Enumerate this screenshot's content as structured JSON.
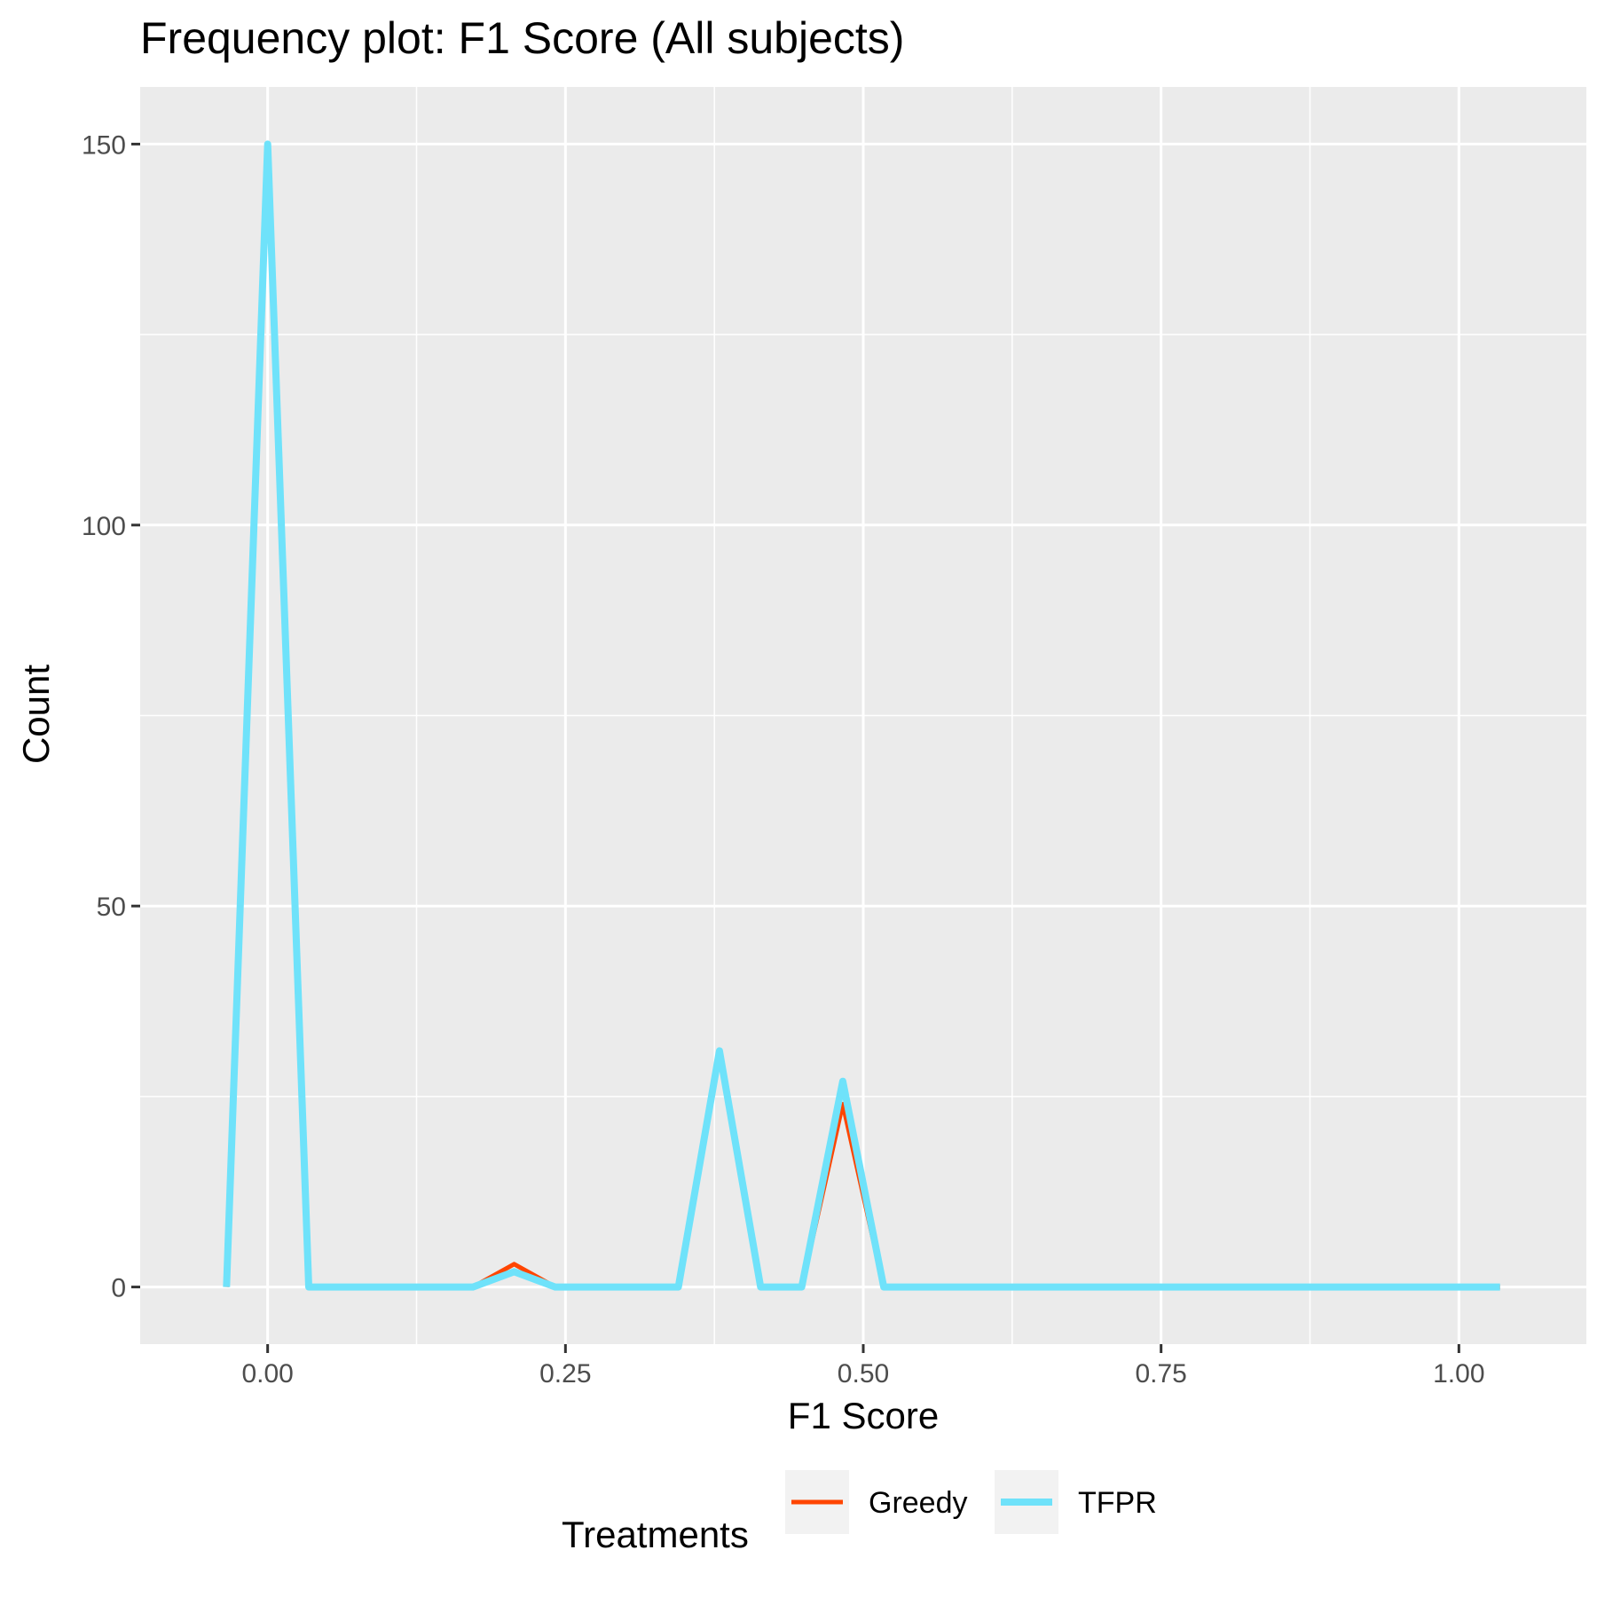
{
  "chart_data": {
    "type": "line",
    "title": "Frequency plot: F1 Score (All subjects)",
    "xlabel": "F1 Score",
    "ylabel": "Count",
    "xlim": [
      -0.107,
      1.107
    ],
    "ylim": [
      -7.5,
      157.5
    ],
    "x_ticks": [
      0,
      0.25,
      0.5,
      0.75,
      1
    ],
    "x_tick_labels": [
      "0.00",
      "0.25",
      "0.50",
      "0.75",
      "1.00"
    ],
    "y_ticks": [
      0,
      50,
      100,
      150
    ],
    "y_tick_labels": [
      "0",
      "50",
      "100",
      "150"
    ],
    "x_minor_ticks": [
      0.125,
      0.375,
      0.625,
      0.875
    ],
    "y_minor_ticks": [
      25,
      75,
      125
    ],
    "grid": true,
    "legend": {
      "title": "Treatments",
      "placement": "bottom"
    },
    "x": [
      -0.0345,
      0,
      0.0345,
      0.069,
      0.1034,
      0.1379,
      0.1724,
      0.2069,
      0.2414,
      0.2759,
      0.3103,
      0.3448,
      0.3793,
      0.4138,
      0.4483,
      0.4828,
      0.5172,
      0.5517,
      0.5862,
      0.6207,
      0.6552,
      0.6897,
      0.7241,
      0.7586,
      0.7931,
      0.8276,
      0.8621,
      0.8966,
      0.931,
      0.9655,
      1,
      1.0345
    ],
    "series": [
      {
        "name": "Greedy",
        "color": "#ff4500",
        "width": 5,
        "values": [
          0,
          150,
          0,
          0,
          0,
          0,
          0,
          3,
          0,
          0,
          0,
          0,
          31,
          0,
          0,
          24,
          0,
          0,
          0,
          0,
          0,
          0,
          0,
          0,
          0,
          0,
          0,
          0,
          0,
          0,
          0,
          0
        ]
      },
      {
        "name": "TFPR",
        "color": "#6fe2fa",
        "width": 8,
        "values": [
          0,
          150,
          0,
          0,
          0,
          0,
          0,
          2,
          0,
          0,
          0,
          0,
          31,
          0,
          0,
          27,
          0,
          0,
          0,
          0,
          0,
          0,
          0,
          0,
          0,
          0,
          0,
          0,
          0,
          0,
          0,
          0
        ]
      }
    ],
    "colors": {
      "panel_bg": "#ebebeb",
      "grid": "#ffffff",
      "legend_key_bg": "#f2f2f2"
    }
  }
}
